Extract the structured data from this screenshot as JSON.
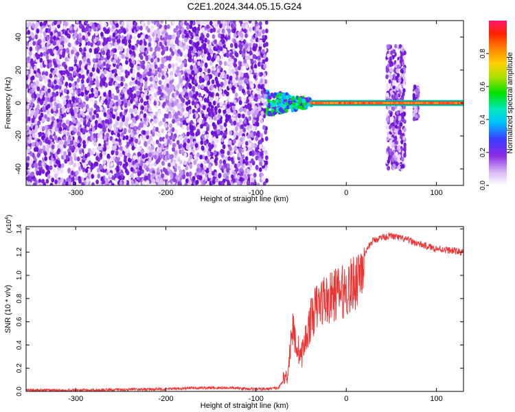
{
  "title": "C2E1.2024.344.05.15.G24",
  "chart_data": [
    {
      "type": "heatmap",
      "xlabel": "Height of straight line (km)",
      "ylabel": "Frequency (Hz)",
      "xlim": [
        -355,
        130
      ],
      "ylim": [
        -50,
        50
      ],
      "xticks": [
        -300,
        -200,
        -100,
        0,
        100
      ],
      "yticks": [
        -40,
        -20,
        0,
        20,
        40
      ],
      "colorbar": {
        "label": "Normalized spectral amplitude",
        "range": [
          0.0,
          1.0
        ],
        "ticks": [
          "0.0",
          "0.2",
          "0.4",
          "0.6",
          "0.8"
        ],
        "tick_values": [
          0.0,
          0.2,
          0.4,
          0.6,
          0.8
        ]
      },
      "regions": {
        "noise_x_range": [
          -355,
          -88
        ],
        "signal_x_range": [
          -88,
          130
        ],
        "signal_frequency_hz": 0,
        "bursts": [
          {
            "x_range": [
              45,
              65
            ],
            "freq_range": [
              -40,
              35
            ]
          },
          {
            "x_range": [
              75,
              80
            ],
            "freq_range": [
              -10,
              10
            ]
          }
        ]
      }
    },
    {
      "type": "line",
      "xlabel": "Height of straight line (km)",
      "ylabel": "SNR (10 * v/v)",
      "multiplier": "(x10",
      "multiplier_exp": "4",
      "xlim": [
        -355,
        130
      ],
      "ylim": [
        0,
        1.42
      ],
      "xticks": [
        -300,
        -200,
        -100,
        0,
        100
      ],
      "yticks": [
        "0.0",
        "0.2",
        "0.4",
        "0.6",
        "0.8",
        "1.0",
        "1.2",
        "1.4"
      ],
      "ytick_values": [
        0,
        0.2,
        0.4,
        0.6,
        0.8,
        1.0,
        1.2,
        1.4
      ],
      "series": [
        {
          "color": "#ee3333",
          "x": [
            -355,
            -300,
            -250,
            -200,
            -160,
            -130,
            -100,
            -90,
            -75,
            -65,
            -60,
            -55,
            -50,
            -45,
            -40,
            -35,
            -30,
            -25,
            -20,
            -15,
            -10,
            -5,
            0,
            5,
            10,
            15,
            20,
            25,
            30,
            40,
            50,
            60,
            70,
            80,
            90,
            100,
            110,
            120,
            130
          ],
          "y": [
            0.01,
            0.01,
            0.015,
            0.02,
            0.03,
            0.03,
            0.02,
            0.02,
            0.03,
            0.15,
            0.55,
            0.4,
            0.3,
            0.45,
            0.6,
            0.7,
            0.75,
            0.8,
            0.78,
            0.82,
            0.85,
            0.85,
            0.88,
            0.9,
            0.95,
            1.05,
            1.15,
            1.25,
            1.3,
            1.33,
            1.34,
            1.32,
            1.3,
            1.27,
            1.25,
            1.23,
            1.22,
            1.21,
            1.2
          ]
        }
      ]
    }
  ]
}
